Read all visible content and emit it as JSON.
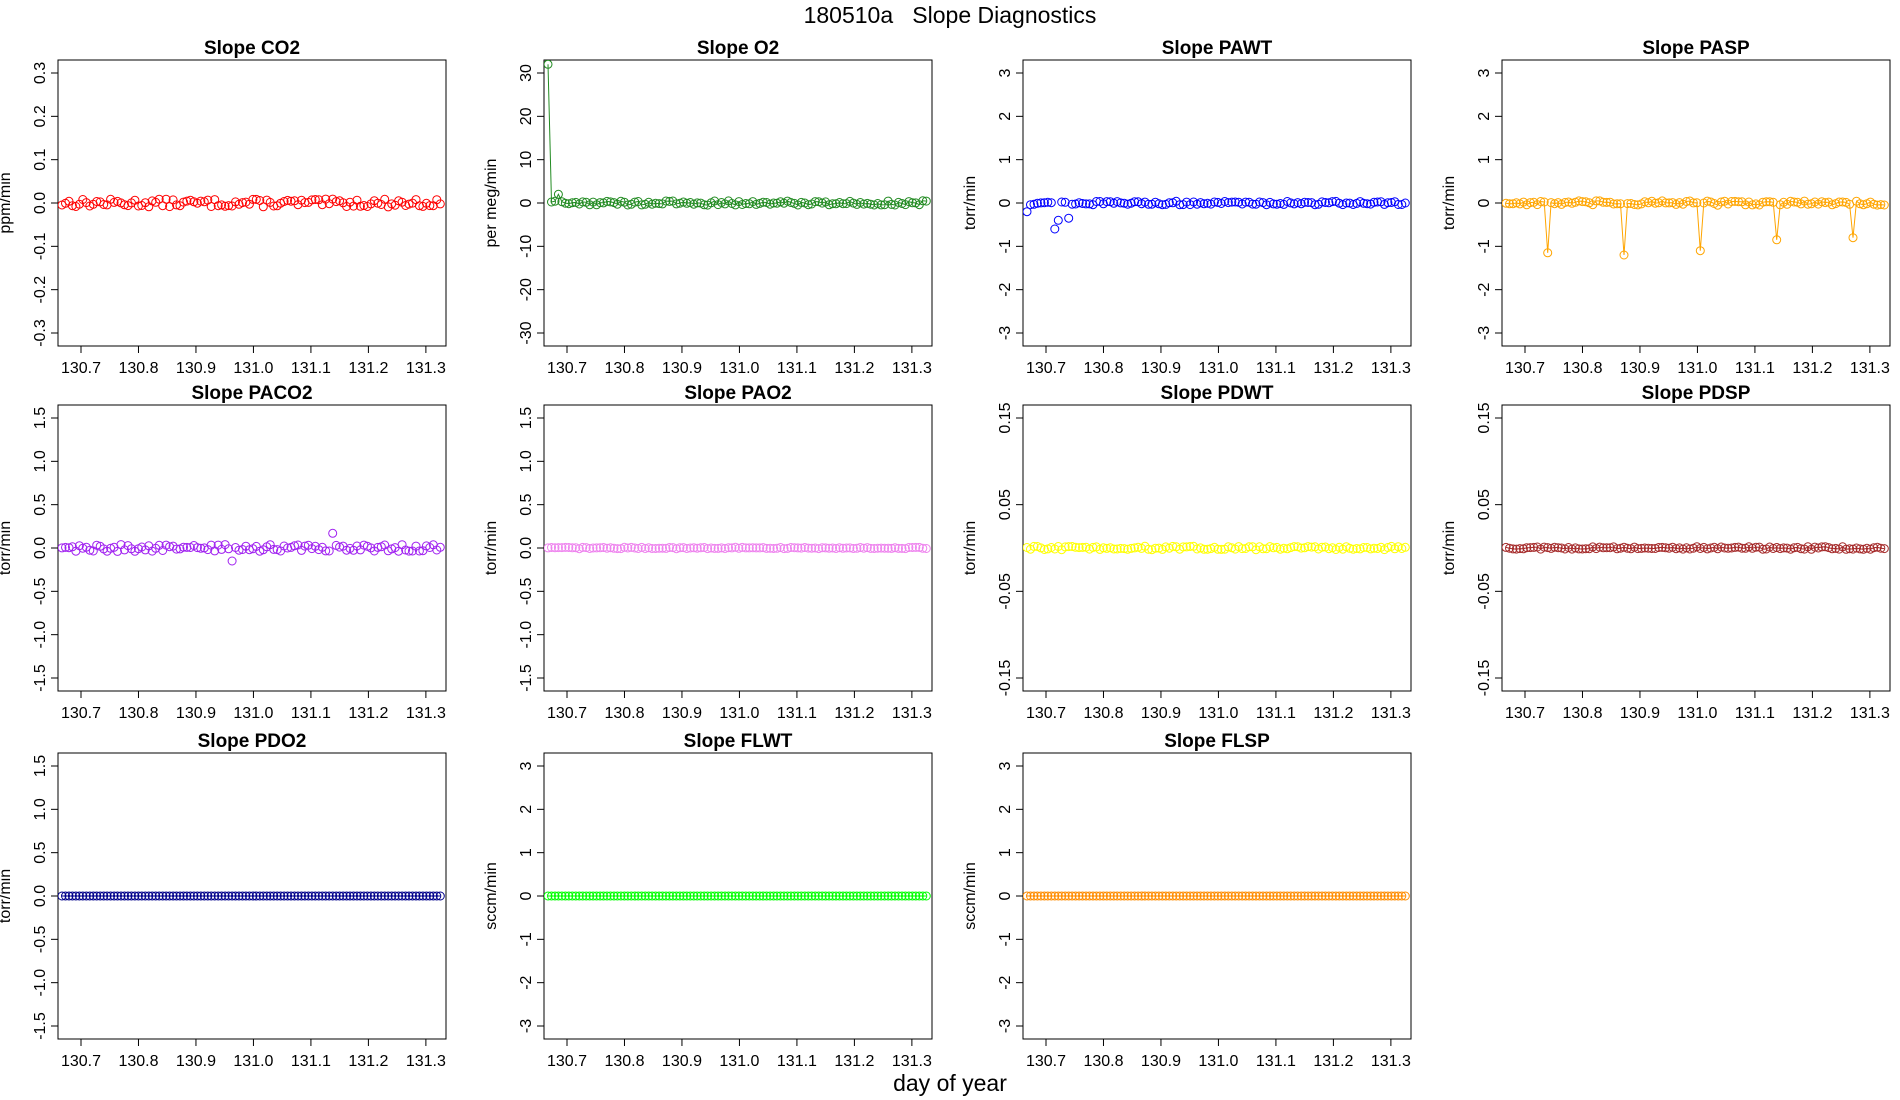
{
  "figure": {
    "title": "180510a   Slope Diagnostics",
    "xlabel": "day of year"
  },
  "chart_data": [
    {
      "type": "scatter",
      "title": "Slope CO2",
      "ylabel": "ppm/min",
      "color": "#ff0000",
      "xlim": [
        130.66,
        131.335
      ],
      "ylim": [
        -0.33,
        0.33
      ],
      "yticks": [
        -0.3,
        -0.2,
        -0.1,
        0.0,
        0.1,
        0.2,
        0.3
      ],
      "ytick_labels": [
        "-0.3",
        "-0.2",
        "-0.1",
        "0.0",
        "0.1",
        "0.2",
        "0.3"
      ],
      "xticks": [
        130.7,
        130.8,
        130.9,
        131.0,
        131.1,
        131.2,
        131.3
      ],
      "xtick_labels": [
        "130.7",
        "130.8",
        "130.9",
        "131.0",
        "131.1",
        "131.2",
        "131.3"
      ],
      "x_range": [
        130.667,
        131.325
      ],
      "n_points": 110,
      "baseline": 0.0,
      "noise": 0.009,
      "spikes": [],
      "connect": false
    },
    {
      "type": "scatter",
      "title": "Slope O2",
      "ylabel": "per meg/min",
      "color": "#228b22",
      "xlim": [
        130.66,
        131.335
      ],
      "ylim": [
        -33,
        33
      ],
      "yticks": [
        -30,
        -20,
        -10,
        0,
        10,
        20,
        30
      ],
      "ytick_labels": [
        "-30",
        "-20",
        "-10",
        "0",
        "10",
        "20",
        "30"
      ],
      "xticks": [
        130.7,
        130.8,
        130.9,
        131.0,
        131.1,
        131.2,
        131.3
      ],
      "xtick_labels": [
        "130.7",
        "130.8",
        "130.9",
        "131.0",
        "131.1",
        "131.2",
        "131.3"
      ],
      "x_range": [
        130.667,
        131.325
      ],
      "n_points": 110,
      "baseline": 0.0,
      "noise": 0.5,
      "spikes": [
        {
          "x": 130.667,
          "y": 32.0
        },
        {
          "x": 130.684,
          "y": 2.0
        }
      ],
      "connect": true
    },
    {
      "type": "scatter",
      "title": "Slope PAWT",
      "ylabel": "torr/min",
      "color": "#0000ff",
      "xlim": [
        130.66,
        131.335
      ],
      "ylim": [
        -3.3,
        3.3
      ],
      "yticks": [
        -3,
        -2,
        -1,
        0,
        1,
        2,
        3
      ],
      "ytick_labels": [
        "-3",
        "-2",
        "-1",
        "0",
        "1",
        "2",
        "3"
      ],
      "xticks": [
        130.7,
        130.8,
        130.9,
        131.0,
        131.1,
        131.2,
        131.3
      ],
      "xtick_labels": [
        "130.7",
        "130.8",
        "130.9",
        "131.0",
        "131.1",
        "131.2",
        "131.3"
      ],
      "x_range": [
        130.667,
        131.325
      ],
      "n_points": 110,
      "baseline": 0.0,
      "noise": 0.04,
      "spikes": [
        {
          "x": 130.667,
          "y": -0.2
        },
        {
          "x": 130.714,
          "y": -0.6
        },
        {
          "x": 130.72,
          "y": -0.4
        },
        {
          "x": 130.741,
          "y": -0.35
        }
      ],
      "connect": false
    },
    {
      "type": "scatter",
      "title": "Slope PASP",
      "ylabel": "torr/min",
      "color": "#ffa500",
      "xlim": [
        130.66,
        131.335
      ],
      "ylim": [
        -3.3,
        3.3
      ],
      "yticks": [
        -3,
        -2,
        -1,
        0,
        1,
        2,
        3
      ],
      "ytick_labels": [
        "-3",
        "-2",
        "-1",
        "0",
        "1",
        "2",
        "3"
      ],
      "xticks": [
        130.7,
        130.8,
        130.9,
        131.0,
        131.1,
        131.2,
        131.3
      ],
      "xtick_labels": [
        "130.7",
        "130.8",
        "130.9",
        "131.0",
        "131.1",
        "131.2",
        "131.3"
      ],
      "x_range": [
        130.667,
        131.325
      ],
      "n_points": 110,
      "baseline": 0.0,
      "noise": 0.05,
      "spikes": [
        {
          "x": 130.741,
          "y": -1.15
        },
        {
          "x": 130.87,
          "y": -1.2
        },
        {
          "x": 131.006,
          "y": -1.1
        },
        {
          "x": 131.14,
          "y": -0.85
        },
        {
          "x": 131.27,
          "y": -0.8
        }
      ],
      "connect": true
    },
    {
      "type": "scatter",
      "title": "Slope PACO2",
      "ylabel": "torr/min",
      "color": "#a020f0",
      "xlim": [
        130.66,
        131.335
      ],
      "ylim": [
        -1.65,
        1.65
      ],
      "yticks": [
        -1.5,
        -1.0,
        -0.5,
        0.0,
        0.5,
        1.0,
        1.5
      ],
      "ytick_labels": [
        "-1.5",
        "-1.0",
        "-0.5",
        "0.0",
        "0.5",
        "1.0",
        "1.5"
      ],
      "xticks": [
        130.7,
        130.8,
        130.9,
        131.0,
        131.1,
        131.2,
        131.3
      ],
      "xtick_labels": [
        "130.7",
        "130.8",
        "130.9",
        "131.0",
        "131.1",
        "131.2",
        "131.3"
      ],
      "x_range": [
        130.667,
        131.325
      ],
      "n_points": 110,
      "baseline": 0.0,
      "noise": 0.04,
      "spikes": [
        {
          "x": 130.96,
          "y": -0.15
        },
        {
          "x": 131.14,
          "y": 0.17
        }
      ],
      "connect": false
    },
    {
      "type": "scatter",
      "title": "Slope PAO2",
      "ylabel": "torr/min",
      "color": "#ee82ee",
      "xlim": [
        130.66,
        131.335
      ],
      "ylim": [
        -1.65,
        1.65
      ],
      "yticks": [
        -1.5,
        -1.0,
        -0.5,
        0.0,
        0.5,
        1.0,
        1.5
      ],
      "ytick_labels": [
        "-1.5",
        "-1.0",
        "-0.5",
        "0.0",
        "0.5",
        "1.0",
        "1.5"
      ],
      "xticks": [
        130.7,
        130.8,
        130.9,
        131.0,
        131.1,
        131.2,
        131.3
      ],
      "xtick_labels": [
        "130.7",
        "130.8",
        "130.9",
        "131.0",
        "131.1",
        "131.2",
        "131.3"
      ],
      "x_range": [
        130.667,
        131.325
      ],
      "n_points": 110,
      "baseline": 0.0,
      "noise": 0.008,
      "spikes": [],
      "connect": false
    },
    {
      "type": "scatter",
      "title": "Slope PDWT",
      "ylabel": "torr/min",
      "color": "#ffff00",
      "xlim": [
        130.66,
        131.335
      ],
      "ylim": [
        -0.165,
        0.165
      ],
      "yticks": [
        -0.15,
        -0.05,
        0.05,
        0.15
      ],
      "ytick_labels": [
        "-0.15",
        "-0.05",
        "0.05",
        "0.15"
      ],
      "xticks": [
        130.7,
        130.8,
        130.9,
        131.0,
        131.1,
        131.2,
        131.3
      ],
      "xtick_labels": [
        "130.7",
        "130.8",
        "130.9",
        "131.0",
        "131.1",
        "131.2",
        "131.3"
      ],
      "x_range": [
        130.667,
        131.325
      ],
      "n_points": 110,
      "baseline": 0.0,
      "noise": 0.002,
      "spikes": [],
      "connect": false
    },
    {
      "type": "scatter",
      "title": "Slope PDSP",
      "ylabel": "torr/min",
      "color": "#a52a2a",
      "xlim": [
        130.66,
        131.335
      ],
      "ylim": [
        -0.165,
        0.165
      ],
      "yticks": [
        -0.15,
        -0.05,
        0.05,
        0.15
      ],
      "ytick_labels": [
        "-0.15",
        "-0.05",
        "0.05",
        "0.15"
      ],
      "xticks": [
        130.7,
        130.8,
        130.9,
        131.0,
        131.1,
        131.2,
        131.3
      ],
      "xtick_labels": [
        "130.7",
        "130.8",
        "130.9",
        "131.0",
        "131.1",
        "131.2",
        "131.3"
      ],
      "x_range": [
        130.667,
        131.325
      ],
      "n_points": 110,
      "baseline": 0.0,
      "noise": 0.0015,
      "spikes": [],
      "connect": true
    },
    {
      "type": "scatter",
      "title": "Slope PDO2",
      "ylabel": "torr/min",
      "color": "#00008b",
      "xlim": [
        130.66,
        131.335
      ],
      "ylim": [
        -1.65,
        1.65
      ],
      "yticks": [
        -1.5,
        -1.0,
        -0.5,
        0.0,
        0.5,
        1.0,
        1.5
      ],
      "ytick_labels": [
        "-1.5",
        "-1.0",
        "-0.5",
        "0.0",
        "0.5",
        "1.0",
        "1.5"
      ],
      "xticks": [
        130.7,
        130.8,
        130.9,
        131.0,
        131.1,
        131.2,
        131.3
      ],
      "xtick_labels": [
        "130.7",
        "130.8",
        "130.9",
        "131.0",
        "131.1",
        "131.2",
        "131.3"
      ],
      "x_range": [
        130.667,
        131.325
      ],
      "n_points": 110,
      "baseline": 0.0,
      "noise": 0.0,
      "spikes": [],
      "connect": true
    },
    {
      "type": "scatter",
      "title": "Slope FLWT",
      "ylabel": "sccm/min",
      "color": "#00ff00",
      "xlim": [
        130.66,
        131.335
      ],
      "ylim": [
        -3.3,
        3.3
      ],
      "yticks": [
        -3,
        -2,
        -1,
        0,
        1,
        2,
        3
      ],
      "ytick_labels": [
        "-3",
        "-2",
        "-1",
        "0",
        "1",
        "2",
        "3"
      ],
      "xticks": [
        130.7,
        130.8,
        130.9,
        131.0,
        131.1,
        131.2,
        131.3
      ],
      "xtick_labels": [
        "130.7",
        "130.8",
        "130.9",
        "131.0",
        "131.1",
        "131.2",
        "131.3"
      ],
      "x_range": [
        130.667,
        131.325
      ],
      "n_points": 110,
      "baseline": 0.0,
      "noise": 0.0,
      "spikes": [],
      "connect": true
    },
    {
      "type": "scatter",
      "title": "Slope FLSP",
      "ylabel": "sccm/min",
      "color": "#ff8c00",
      "xlim": [
        130.66,
        131.335
      ],
      "ylim": [
        -3.3,
        3.3
      ],
      "yticks": [
        -3,
        -2,
        -1,
        0,
        1,
        2,
        3
      ],
      "ytick_labels": [
        "-3",
        "-2",
        "-1",
        "0",
        "1",
        "2",
        "3"
      ],
      "xticks": [
        130.7,
        130.8,
        130.9,
        131.0,
        131.1,
        131.2,
        131.3
      ],
      "xtick_labels": [
        "130.7",
        "130.8",
        "130.9",
        "131.0",
        "131.1",
        "131.2",
        "131.3"
      ],
      "x_range": [
        130.667,
        131.325
      ],
      "n_points": 110,
      "baseline": 0.0,
      "noise": 0.0,
      "spikes": [],
      "connect": true
    }
  ]
}
